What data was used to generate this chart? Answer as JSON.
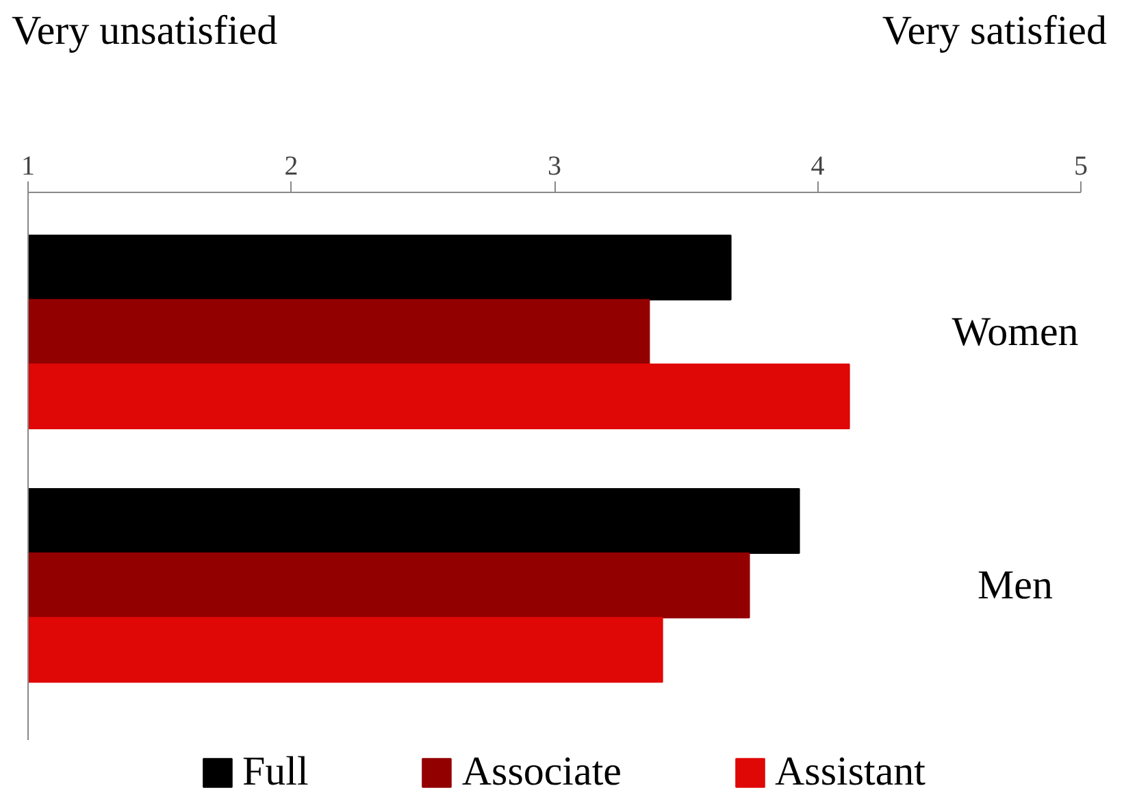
{
  "chart_data": {
    "type": "bar",
    "orientation": "horizontal",
    "categories": [
      "Women",
      "Men"
    ],
    "series": [
      {
        "name": "Full",
        "color": "#000000",
        "values": [
          3.67,
          3.93
        ]
      },
      {
        "name": "Associate",
        "color": "#930000",
        "values": [
          3.36,
          3.74
        ]
      },
      {
        "name": "Assistant",
        "color": "#df0806",
        "values": [
          4.12,
          3.41
        ]
      }
    ],
    "xlim": [
      1,
      5
    ],
    "xticks": [
      1,
      2,
      3,
      4,
      5
    ],
    "tick_labels": "x",
    "grid": false,
    "legend": "bottom",
    "annotations": [
      "Very unsatisfied",
      "Very satisfied"
    ]
  }
}
